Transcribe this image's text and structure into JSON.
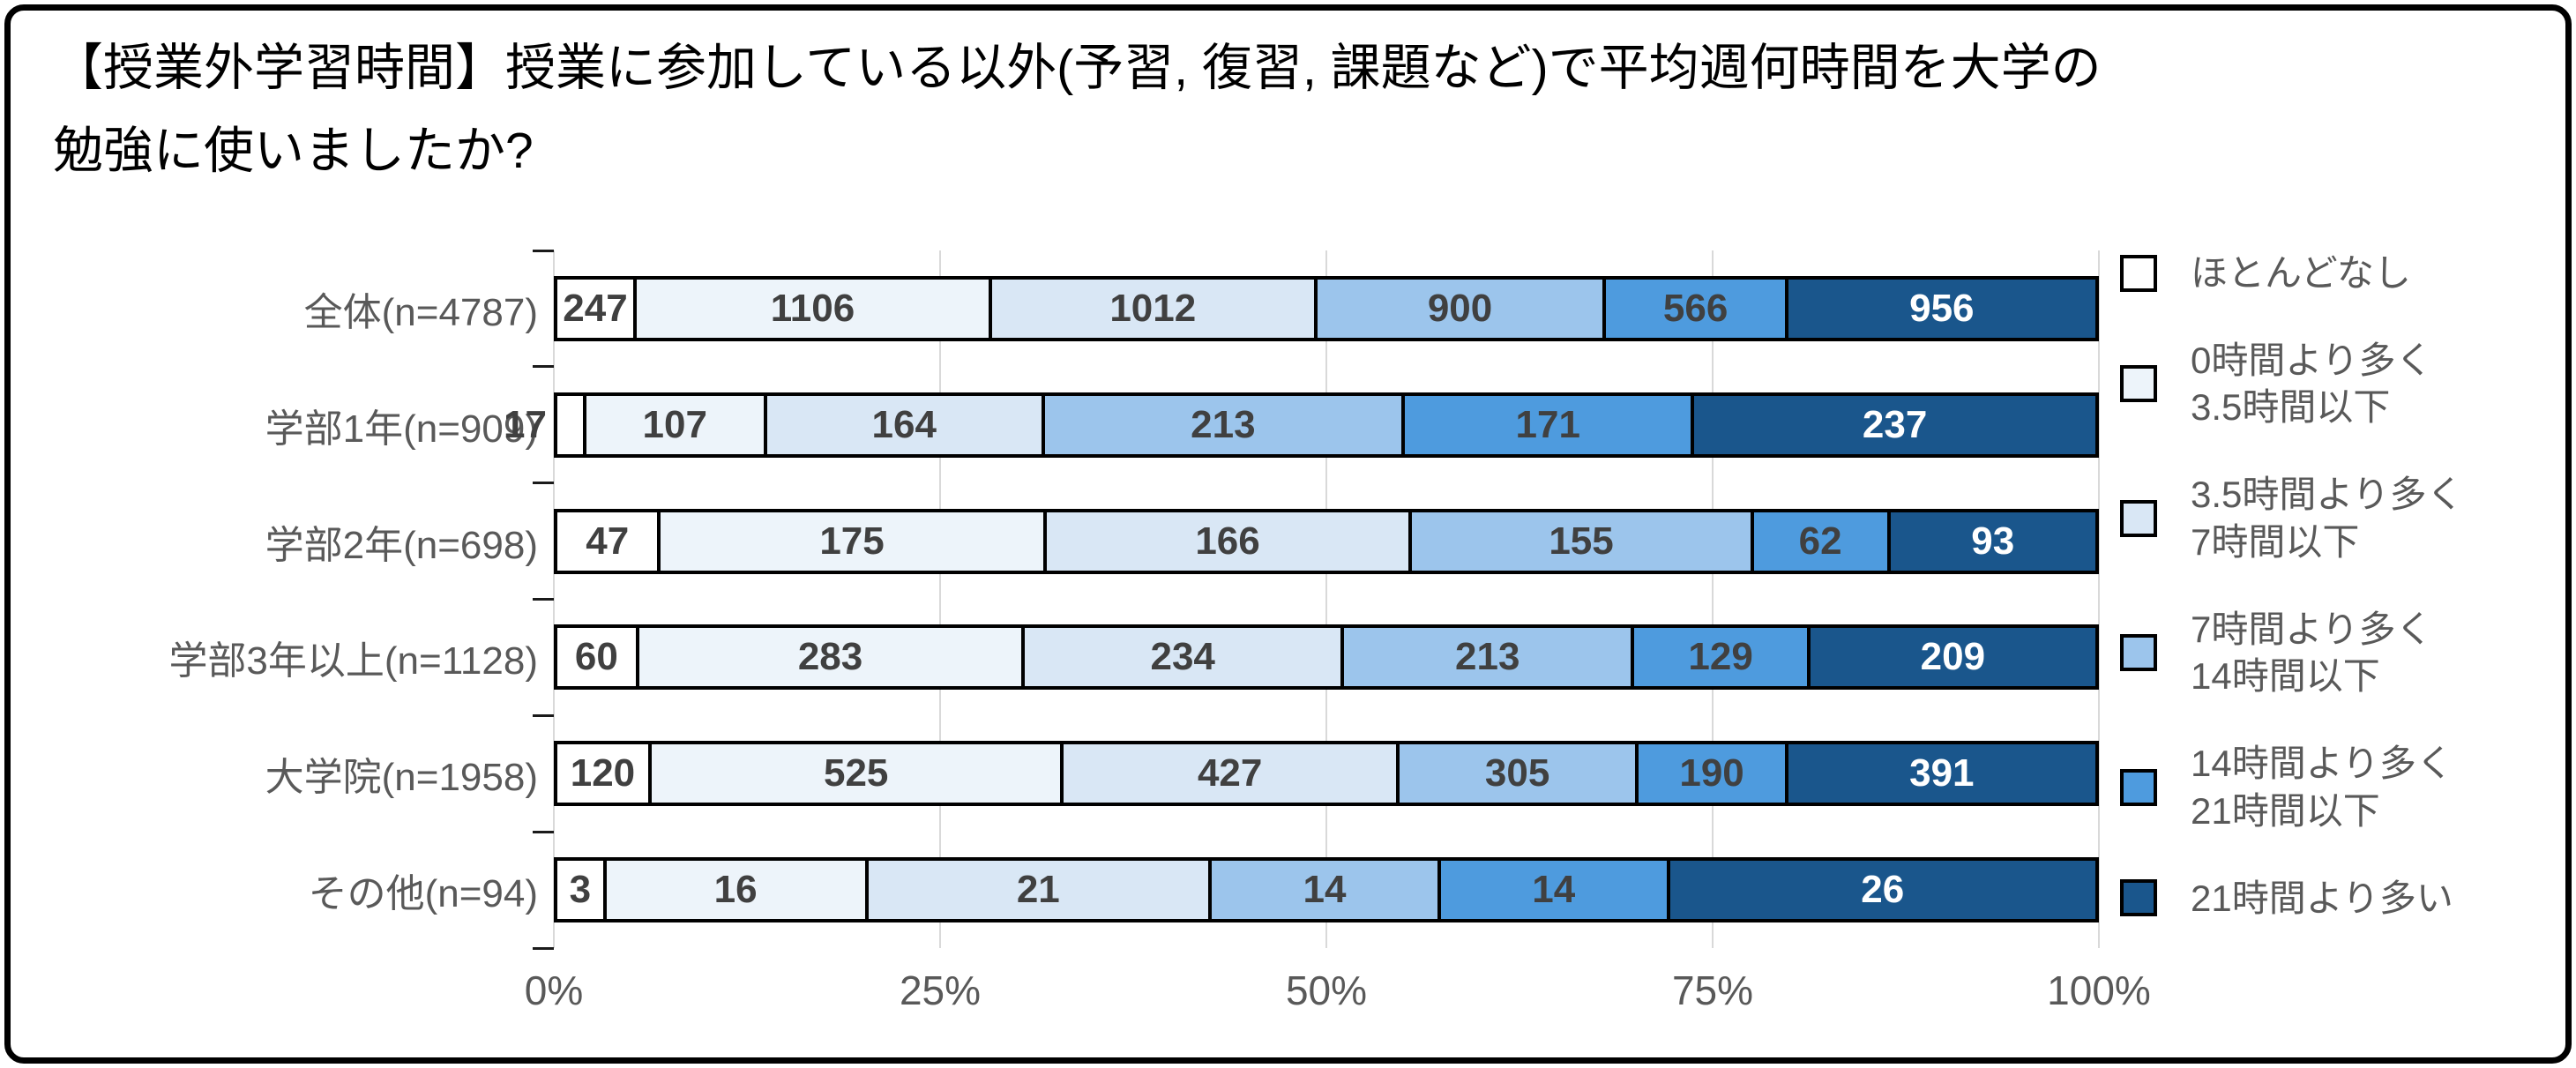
{
  "title": {
    "lines": [
      "【授業外学習時間】授業に参加している以外(予習, 復習, 課題など)で平均週何時間を大学の",
      "勉強に使いましたか?"
    ]
  },
  "chart_data": {
    "type": "bar",
    "orientation": "horizontal",
    "stacked": true,
    "percent_stacked": true,
    "title": "【授業外学習時間】授業に参加している以外(予習, 復習, 課題など)で平均週何時間を大学の勉強に使いましたか?",
    "categories": [
      "全体(n=4787)",
      "学部1年(n=909)",
      "学部2年(n=698)",
      "学部3年以上(n=1128)",
      "大学院(n=1958)",
      "その他(n=94)"
    ],
    "totals": [
      4787,
      909,
      698,
      1128,
      1958,
      94
    ],
    "series": [
      {
        "name": "ほとんどなし",
        "legend_lines": [
          "ほとんどなし"
        ],
        "color": "#FFFFFF",
        "label_color": "#404040",
        "values": [
          247,
          17,
          47,
          60,
          120,
          3
        ]
      },
      {
        "name": "0時間より多く3.5時間以下",
        "legend_lines": [
          "0時間より多く",
          "3.5時間以下"
        ],
        "color": "#EDF4FA",
        "label_color": "#404040",
        "values": [
          1106,
          107,
          175,
          283,
          525,
          16
        ]
      },
      {
        "name": "3.5時間より多く7時間以下",
        "legend_lines": [
          "3.5時間より多く",
          "7時間以下"
        ],
        "color": "#D9E7F5",
        "label_color": "#404040",
        "values": [
          1012,
          164,
          166,
          234,
          427,
          21
        ]
      },
      {
        "name": "7時間より多く14時間以下",
        "legend_lines": [
          "7時間より多く",
          "14時間以下"
        ],
        "color": "#9CC5EC",
        "label_color": "#404040",
        "values": [
          900,
          213,
          155,
          213,
          305,
          14
        ]
      },
      {
        "name": "14時間より多く21時間以下",
        "legend_lines": [
          "14時間より多く",
          "21時間以下"
        ],
        "color": "#4E9BDE",
        "label_color": "#404040",
        "values": [
          566,
          171,
          62,
          129,
          190,
          14
        ]
      },
      {
        "name": "21時間より多い",
        "legend_lines": [
          "21時間より多い"
        ],
        "color": "#1A568C",
        "label_color": "#FFFFFF",
        "values": [
          956,
          237,
          93,
          209,
          391,
          26
        ]
      }
    ],
    "x_ticks": [
      "0%",
      "25%",
      "50%",
      "75%",
      "100%"
    ],
    "xlim": [
      0,
      100
    ],
    "grid": true,
    "legend_position": "right",
    "colors": {
      "axis_text": "#595959",
      "data_label": "#404040",
      "gridline": "#D9D9D9",
      "segment_border": "#000000",
      "panel_border": "#000000"
    }
  }
}
